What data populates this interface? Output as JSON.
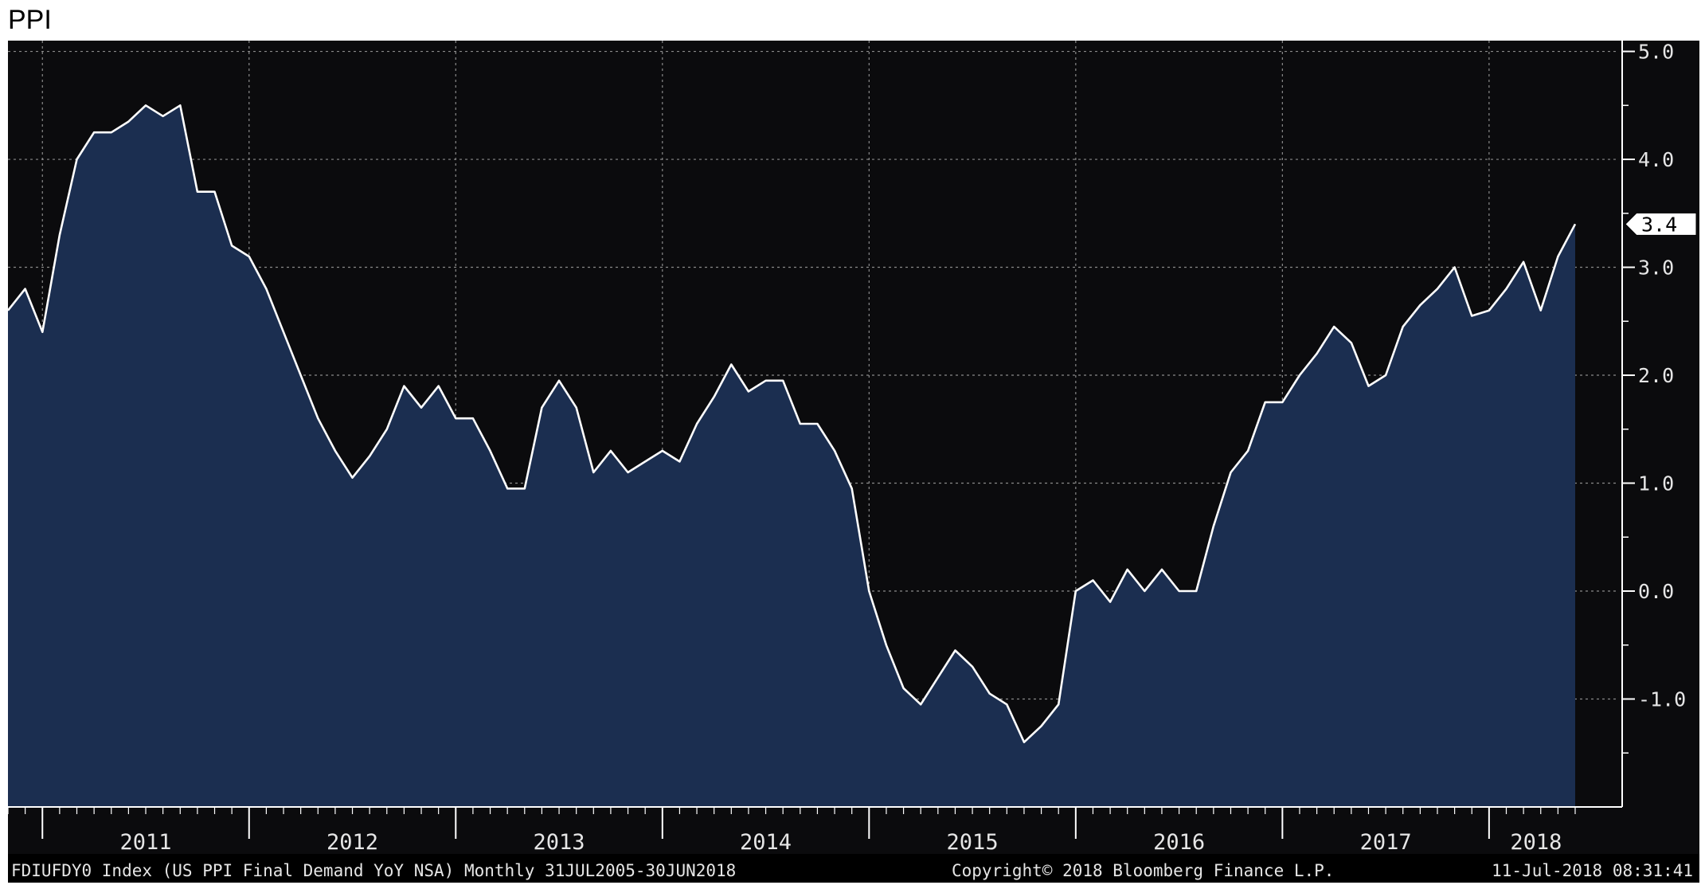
{
  "page": {
    "title": "PPI"
  },
  "colors": {
    "background": "#0b0b0d",
    "fill": "#1b2e50",
    "line": "#ffffff",
    "axis": "#ffffff",
    "grid": "#8a8a8a",
    "footer_bg": "#000000",
    "text": "#e6e6e6"
  },
  "footer": {
    "left": "FDIUFDY0 Index (US PPI Final Demand YoY NSA)  Monthly 31JUL2005-30JUN2018",
    "center": "Copyright© 2018 Bloomberg Finance L.P.",
    "right": "11-Jul-2018 08:31:41"
  },
  "chart_data": {
    "type": "area",
    "title": "PPI",
    "xlabel": "",
    "ylabel": "",
    "ylim": [
      -2.0,
      5.1
    ],
    "yticks": [
      5.0,
      4.0,
      3.0,
      2.0,
      1.0,
      0.0,
      -1.0
    ],
    "ytick_labels": [
      "5.0",
      "4.0",
      "3.0",
      "2.0",
      "1.0",
      "0.0",
      "-1.0"
    ],
    "year_labels": [
      "2011",
      "2012",
      "2013",
      "2014",
      "2015",
      "2016",
      "2017",
      "2018"
    ],
    "x_start": "2010-11",
    "x_end": "2018-06",
    "grid": true,
    "last_value_label": "3.4",
    "series": [
      {
        "values": [
          2.6,
          2.8,
          2.4,
          3.3,
          4.0,
          4.25,
          4.25,
          4.35,
          4.5,
          4.4,
          4.5,
          3.7,
          3.7,
          3.2,
          3.1,
          2.8,
          2.4,
          2.0,
          1.6,
          1.3,
          1.05,
          1.25,
          1.5,
          1.9,
          1.7,
          1.9,
          1.6,
          1.6,
          1.3,
          0.95,
          0.95,
          1.7,
          1.95,
          1.7,
          1.1,
          1.3,
          1.1,
          1.2,
          1.3,
          1.2,
          1.55,
          1.8,
          2.1,
          1.85,
          1.95,
          1.95,
          1.55,
          1.55,
          1.3,
          0.95,
          0.0,
          -0.5,
          -0.9,
          -1.05,
          -0.8,
          -0.55,
          -0.7,
          -0.95,
          -1.05,
          -1.4,
          -1.25,
          -1.05,
          0.0,
          0.1,
          -0.1,
          0.2,
          0.0,
          0.2,
          0.0,
          0.0,
          0.6,
          1.1,
          1.3,
          1.75,
          1.75,
          2.0,
          2.2,
          2.45,
          2.3,
          1.9,
          2.0,
          2.45,
          2.65,
          2.8,
          3.0,
          2.55,
          2.6,
          2.8,
          3.05,
          2.6,
          3.1,
          3.4
        ]
      }
    ]
  }
}
